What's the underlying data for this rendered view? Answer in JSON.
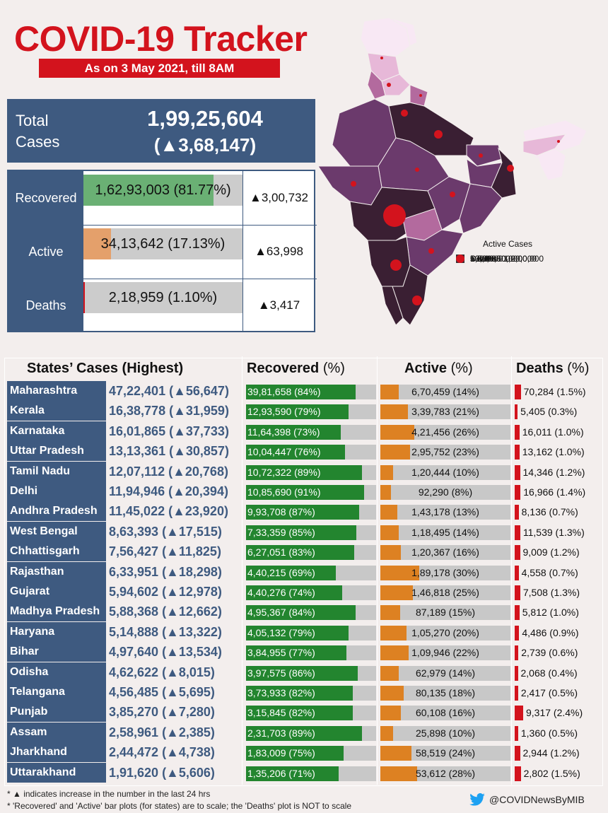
{
  "header": {
    "title": "COVID-19 Tracker",
    "subtitle": "As on 3 May 2021, till 8AM"
  },
  "total": {
    "label_line1": "Total",
    "label_line2": "Cases",
    "value": "1,99,25,604",
    "delta": "(▲3,68,147)"
  },
  "summary": [
    {
      "label": "Recovered",
      "value": "1,62,93,003 (81.77%)",
      "delta": "▲3,00,732",
      "fraction": 0.8177,
      "color": "#6ab074"
    },
    {
      "label": "Active",
      "value": "34,13,642 (17.13%)",
      "delta": "▲63,998",
      "fraction": 0.1713,
      "color": "#e4a06b"
    },
    {
      "label": "Deaths",
      "value": "2,18,959 (1.10%)",
      "delta": "▲3,417",
      "fraction": 0.011,
      "color": "#d3131d"
    }
  ],
  "legend": {
    "title": "Active Cases",
    "items": [
      {
        "label": "< 5000",
        "color": "#f8e8f4"
      },
      {
        "label": "5000 - 50,000",
        "color": "#e7b8d8"
      },
      {
        "label": "50,000 - 1,00,000",
        "color": "#b36a9e"
      },
      {
        "label": "1,00,000 - 2,00,000",
        "color": "#6b3a6c"
      },
      {
        "label": "> 2,00,000",
        "color": "#3a1f33"
      }
    ],
    "deaths_label": "Deaths"
  },
  "table_headers": {
    "states": "States’ Cases (Highest)",
    "recovered": "Recovered",
    "active": "Active",
    "deaths": "Deaths",
    "pct": "(%)"
  },
  "chart_data": {
    "type": "table",
    "rows": [
      {
        "state": "Maharashtra",
        "cases": "47,22,401 (▲56,647)",
        "recovered": "39,81,658 (84%)",
        "recovered_pct": 84,
        "active": "6,70,459 (14%)",
        "active_pct": 14,
        "deaths": "70,284 (1.5%)",
        "deaths_pct": 1.5
      },
      {
        "state": "Kerala",
        "cases": "16,38,778 (▲31,959)",
        "recovered": "12,93,590 (79%)",
        "recovered_pct": 79,
        "active": "3,39,783 (21%)",
        "active_pct": 21,
        "deaths": "5,405 (0.3%)",
        "deaths_pct": 0.3
      },
      {
        "state": "Karnataka",
        "cases": "16,01,865 (▲37,733)",
        "recovered": "11,64,398 (73%)",
        "recovered_pct": 73,
        "active": "4,21,456 (26%)",
        "active_pct": 26,
        "deaths": "16,011 (1.0%)",
        "deaths_pct": 1.0
      },
      {
        "state": "Uttar Pradesh",
        "cases": "13,13,361 (▲30,857)",
        "recovered": "10,04,447 (76%)",
        "recovered_pct": 76,
        "active": "2,95,752 (23%)",
        "active_pct": 23,
        "deaths": "13,162 (1.0%)",
        "deaths_pct": 1.0
      },
      {
        "state": "Tamil Nadu",
        "cases": "12,07,112 (▲20,768)",
        "recovered": "10,72,322 (89%)",
        "recovered_pct": 89,
        "active": "1,20,444 (10%)",
        "active_pct": 10,
        "deaths": "14,346 (1.2%)",
        "deaths_pct": 1.2
      },
      {
        "state": "Delhi",
        "cases": "11,94,946 (▲20,394)",
        "recovered": "10,85,690 (91%)",
        "recovered_pct": 91,
        "active": "92,290 (8%)",
        "active_pct": 8,
        "deaths": "16,966 (1.4%)",
        "deaths_pct": 1.4
      },
      {
        "state": "Andhra Pradesh",
        "cases": "11,45,022 (▲23,920)",
        "recovered": "9,93,708 (87%)",
        "recovered_pct": 87,
        "active": "1,43,178 (13%)",
        "active_pct": 13,
        "deaths": "8,136 (0.7%)",
        "deaths_pct": 0.7
      },
      {
        "state": "West Bengal",
        "cases": "8,63,393 (▲17,515)",
        "recovered": "7,33,359 (85%)",
        "recovered_pct": 85,
        "active": "1,18,495 (14%)",
        "active_pct": 14,
        "deaths": "11,539 (1.3%)",
        "deaths_pct": 1.3
      },
      {
        "state": "Chhattisgarh",
        "cases": "7,56,427 (▲11,825)",
        "recovered": "6,27,051 (83%)",
        "recovered_pct": 83,
        "active": "1,20,367 (16%)",
        "active_pct": 16,
        "deaths": "9,009 (1.2%)",
        "deaths_pct": 1.2
      },
      {
        "state": "Rajasthan",
        "cases": "6,33,951 (▲18,298)",
        "recovered": "4,40,215 (69%)",
        "recovered_pct": 69,
        "active": "1,89,178 (30%)",
        "active_pct": 30,
        "deaths": "4,558 (0.7%)",
        "deaths_pct": 0.7
      },
      {
        "state": "Gujarat",
        "cases": "5,94,602 (▲12,978)",
        "recovered": "4,40,276 (74%)",
        "recovered_pct": 74,
        "active": "1,46,818 (25%)",
        "active_pct": 25,
        "deaths": "7,508 (1.3%)",
        "deaths_pct": 1.3
      },
      {
        "state": "Madhya Pradesh",
        "cases": "5,88,368 (▲12,662)",
        "recovered": "4,95,367 (84%)",
        "recovered_pct": 84,
        "active": "87,189 (15%)",
        "active_pct": 15,
        "deaths": "5,812 (1.0%)",
        "deaths_pct": 1.0
      },
      {
        "state": "Haryana",
        "cases": "5,14,888 (▲13,322)",
        "recovered": "4,05,132 (79%)",
        "recovered_pct": 79,
        "active": "1,05,270 (20%)",
        "active_pct": 20,
        "deaths": "4,486 (0.9%)",
        "deaths_pct": 0.9
      },
      {
        "state": "Bihar",
        "cases": "4,97,640 (▲13,534)",
        "recovered": "3,84,955 (77%)",
        "recovered_pct": 77,
        "active": "1,09,946 (22%)",
        "active_pct": 22,
        "deaths": "2,739 (0.6%)",
        "deaths_pct": 0.6
      },
      {
        "state": "Odisha",
        "cases": "4,62,622 (▲8,015)",
        "recovered": "3,97,575 (86%)",
        "recovered_pct": 86,
        "active": "62,979 (14%)",
        "active_pct": 14,
        "deaths": "2,068 (0.4%)",
        "deaths_pct": 0.4
      },
      {
        "state": "Telangana",
        "cases": "4,56,485 (▲5,695)",
        "recovered": "3,73,933 (82%)",
        "recovered_pct": 82,
        "active": "80,135 (18%)",
        "active_pct": 18,
        "deaths": "2,417 (0.5%)",
        "deaths_pct": 0.5
      },
      {
        "state": "Punjab",
        "cases": "3,85,270 (▲7,280)",
        "recovered": "3,15,845 (82%)",
        "recovered_pct": 82,
        "active": "60,108 (16%)",
        "active_pct": 16,
        "deaths": "9,317 (2.4%)",
        "deaths_pct": 2.4
      },
      {
        "state": "Assam",
        "cases": "2,58,961 (▲2,385)",
        "recovered": "2,31,703 (89%)",
        "recovered_pct": 89,
        "active": "25,898 (10%)",
        "active_pct": 10,
        "deaths": "1,360 (0.5%)",
        "deaths_pct": 0.5
      },
      {
        "state": "Jharkhand",
        "cases": "2,44,472 (▲4,738)",
        "recovered": "1,83,009 (75%)",
        "recovered_pct": 75,
        "active": "58,519 (24%)",
        "active_pct": 24,
        "deaths": "2,944 (1.2%)",
        "deaths_pct": 1.2
      },
      {
        "state": "Uttarakhand",
        "cases": "1,91,620 (▲5,606)",
        "recovered": "1,35,206 (71%)",
        "recovered_pct": 71,
        "active": "53,612 (28%)",
        "active_pct": 28,
        "deaths": "2,802 (1.5%)",
        "deaths_pct": 1.5
      }
    ]
  },
  "footnotes": {
    "line1": "* ▲ indicates increase in the number in the last 24 hrs",
    "line2": "* 'Recovered' and 'Active' bar plots (for states) are to scale; the 'Deaths' plot is NOT to scale"
  },
  "twitter_handle": "@COVIDNewsByMIB"
}
